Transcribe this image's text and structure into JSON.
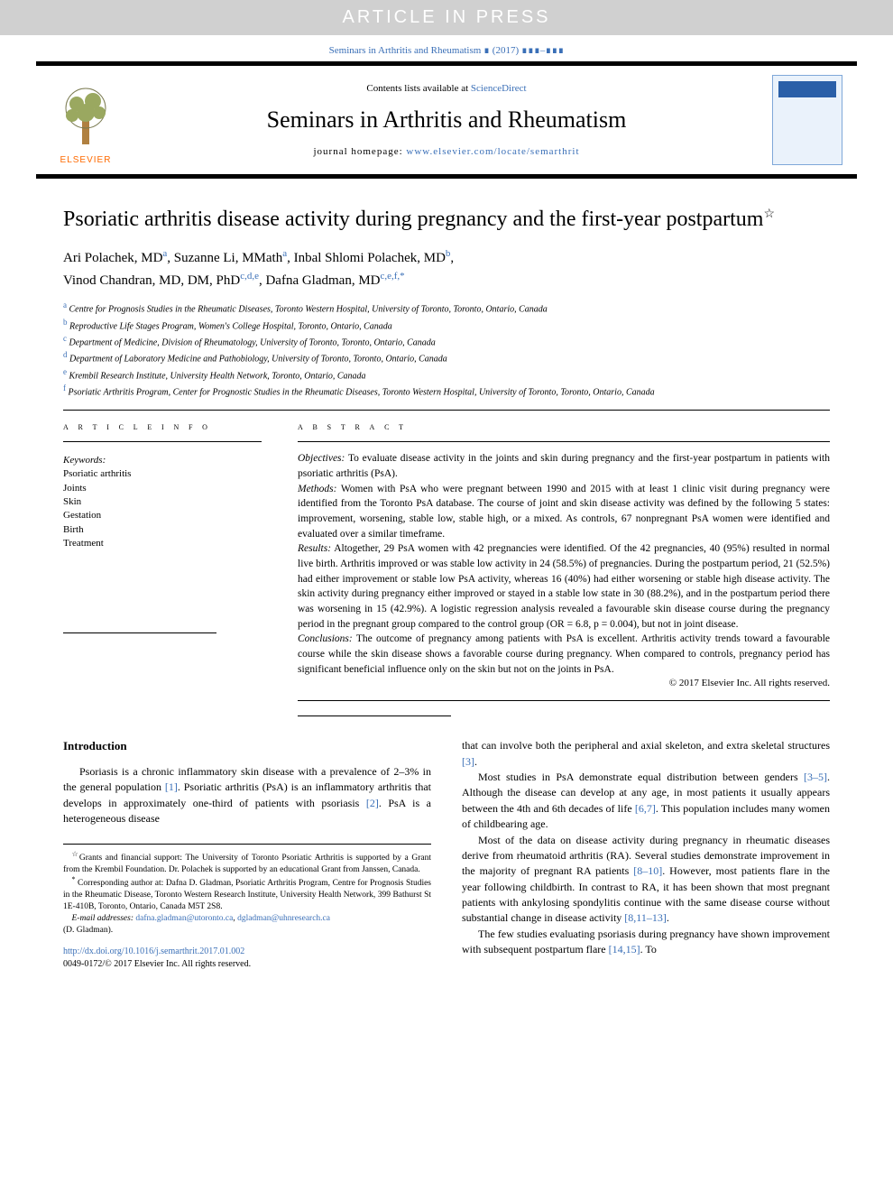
{
  "banner": "ARTICLE IN PRESS",
  "citation": "Seminars in Arthritis and Rheumatism ∎ (2017) ∎∎∎–∎∎∎",
  "header": {
    "contents_prefix": "Contents lists available at ",
    "contents_link": "ScienceDirect",
    "journal": "Seminars in Arthritis and Rheumatism",
    "homepage_prefix": "journal homepage: ",
    "homepage_link": "www.elsevier.com/locate/semarthrit",
    "publisher": "ELSEVIER"
  },
  "title": "Psoriatic arthritis disease activity during pregnancy and the first-year postpartum",
  "title_star": "☆",
  "authors_html": [
    {
      "name": "Ari Polachek, MD",
      "aff": "a"
    },
    {
      "name": "Suzanne Li, MMath",
      "aff": "a"
    },
    {
      "name": "Inbal Shlomi Polachek, MD",
      "aff": "b"
    },
    {
      "name": "Vinod Chandran, MD, DM, PhD",
      "aff": "c,d,e"
    },
    {
      "name": "Dafna Gladman, MD",
      "aff": "c,e,f,",
      "corr": "*"
    }
  ],
  "affiliations": [
    {
      "sup": "a",
      "text": "Centre for Prognosis Studies in the Rheumatic Diseases, Toronto Western Hospital, University of Toronto, Toronto, Ontario, Canada"
    },
    {
      "sup": "b",
      "text": "Reproductive Life Stages Program, Women's College Hospital, Toronto, Ontario, Canada"
    },
    {
      "sup": "c",
      "text": "Department of Medicine, Division of Rheumatology, University of Toronto, Toronto, Ontario, Canada"
    },
    {
      "sup": "d",
      "text": "Department of Laboratory Medicine and Pathobiology, University of Toronto, Toronto, Ontario, Canada"
    },
    {
      "sup": "e",
      "text": "Krembil Research Institute, University Health Network, Toronto, Ontario, Canada"
    },
    {
      "sup": "f",
      "text": "Psoriatic Arthritis Program, Center for Prognostic Studies in the Rheumatic Diseases, Toronto Western Hospital, University of Toronto, Toronto, Ontario, Canada"
    }
  ],
  "article_info_heading": "a r t i c l e   i n f o",
  "abstract_heading": "a b s t r a c t",
  "keywords_label": "Keywords:",
  "keywords": [
    "Psoriatic arthritis",
    "Joints",
    "Skin",
    "Gestation",
    "Birth",
    "Treatment"
  ],
  "abstract": {
    "objectives_label": "Objectives:",
    "objectives": " To evaluate disease activity in the joints and skin during pregnancy and the first-year postpartum in patients with psoriatic arthritis (PsA).",
    "methods_label": "Methods:",
    "methods": " Women with PsA who were pregnant between 1990 and 2015 with at least 1 clinic visit during pregnancy were identified from the Toronto PsA database. The course of joint and skin disease activity was defined by the following 5 states: improvement, worsening, stable low, stable high, or a mixed. As controls, 67 nonpregnant PsA women were identified and evaluated over a similar timeframe.",
    "results_label": "Results:",
    "results": " Altogether, 29 PsA women with 42 pregnancies were identified. Of the 42 pregnancies, 40 (95%) resulted in normal live birth. Arthritis improved or was stable low activity in 24 (58.5%) of pregnancies. During the postpartum period, 21 (52.5%) had either improvement or stable low PsA activity, whereas 16 (40%) had either worsening or stable high disease activity. The skin activity during pregnancy either improved or stayed in a stable low state in 30 (88.2%), and in the postpartum period there was worsening in 15 (42.9%). A logistic regression analysis revealed a favourable skin disease course during the pregnancy period in the pregnant group compared to the control group (OR = 6.8, p = 0.004), but not in joint disease.",
    "conclusions_label": "Conclusions:",
    "conclusions": " The outcome of pregnancy among patients with PsA is excellent. Arthritis activity trends toward a favourable course while the skin disease shows a favorable course during pregnancy. When compared to controls, pregnancy period has significant beneficial influence only on the skin but not on the joints in PsA.",
    "copyright": "© 2017 Elsevier Inc. All rights reserved."
  },
  "intro_heading": "Introduction",
  "intro_p1_a": "Psoriasis is a chronic inflammatory skin disease with a prevalence of 2–3% in the general population ",
  "intro_p1_ref1": "[1]",
  "intro_p1_b": ". Psoriatic arthritis (PsA) is an inflammatory arthritis that develops in approximately one-third of patients with psoriasis ",
  "intro_p1_ref2": "[2]",
  "intro_p1_c": ". PsA is a heterogeneous disease",
  "col2_p1_a": "that can involve both the peripheral and axial skeleton, and extra skeletal structures ",
  "col2_p1_ref": "[3]",
  "col2_p1_b": ".",
  "col2_p2_a": "Most studies in PsA demonstrate equal distribution between genders ",
  "col2_p2_ref1": "[3–5]",
  "col2_p2_b": ". Although the disease can develop at any age, in most patients it usually appears between the 4th and 6th decades of life ",
  "col2_p2_ref2": "[6,7]",
  "col2_p2_c": ". This population includes many women of childbearing age.",
  "col2_p3_a": "Most of the data on disease activity during pregnancy in rheumatic diseases derive from rheumatoid arthritis (RA). Several studies demonstrate improvement in the majority of pregnant RA patients ",
  "col2_p3_ref1": "[8–10]",
  "col2_p3_b": ". However, most patients flare in the year following childbirth. In contrast to RA, it has been shown that most pregnant patients with ankylosing spondylitis continue with the same disease course without substantial change in disease activity ",
  "col2_p3_ref2": "[8,11–13]",
  "col2_p3_c": ".",
  "col2_p4_a": "The few studies evaluating psoriasis during pregnancy have shown improvement with subsequent postpartum flare ",
  "col2_p4_ref": "[14,15]",
  "col2_p4_b": ". To",
  "footnotes": {
    "grant_star": "☆",
    "grant": "Grants and financial support: The University of Toronto Psoriatic Arthritis is supported by a Grant from the Krembil Foundation. Dr. Polachek is supported by an educational Grant from Janssen, Canada.",
    "corr_star": "*",
    "corr": " Corresponding author at: Dafna D. Gladman, Psoriatic Arthritis Program, Centre for Prognosis Studies in the Rheumatic Disease, Toronto Western Research Institute, University Health Network, 399 Bathurst St 1E-410B, Toronto, Ontario, Canada M5T 2S8.",
    "email_label": "E-mail addresses:",
    "email1": " dafna.gladman@utoronto.ca",
    "email2": "dgladman@uhnresearch.ca",
    "email_name": "(D. Gladman)."
  },
  "doi": "http://dx.doi.org/10.1016/j.semarthrit.2017.01.002",
  "issn_line": "0049-0172/© 2017 Elsevier Inc. All rights reserved.",
  "colors": {
    "link": "#3a6fb7",
    "banner_bg": "#d0d0d0",
    "elsevier": "#ff6a00"
  }
}
